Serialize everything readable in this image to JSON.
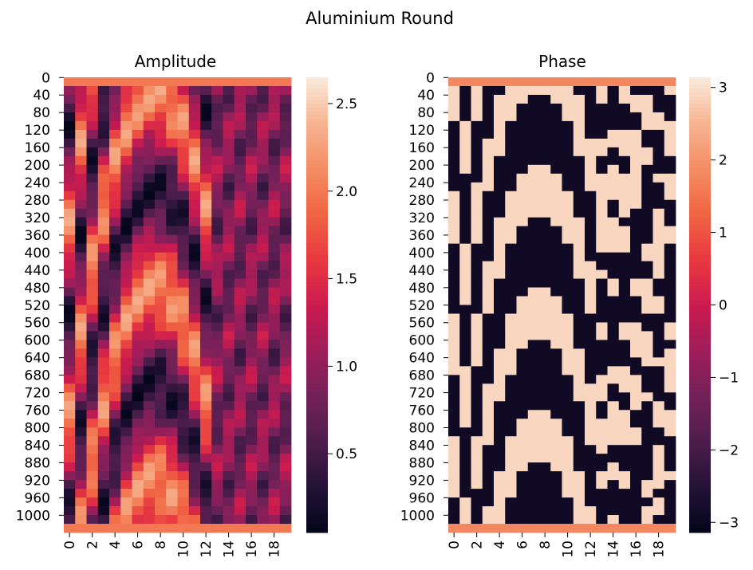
{
  "suptitle": "Aluminium Round",
  "chart_data": [
    {
      "type": "heatmap",
      "title": "Amplitude",
      "x_ticks": [
        "0",
        "2",
        "4",
        "6",
        "8",
        "10",
        "12",
        "14",
        "16",
        "18"
      ],
      "y_ticks": [
        "0",
        "40",
        "80",
        "120",
        "160",
        "200",
        "240",
        "280",
        "320",
        "360",
        "400",
        "440",
        "480",
        "520",
        "560",
        "600",
        "640",
        "680",
        "720",
        "760",
        "800",
        "840",
        "880",
        "920",
        "960",
        "1000"
      ],
      "n_cols": 20,
      "n_rows": 1040,
      "colorbar": {
        "min": 0.05,
        "max": 2.65,
        "ticks": [
          "0.5",
          "1.0",
          "1.5",
          "2.0",
          "2.5"
        ],
        "tick_values": [
          0.5,
          1.0,
          1.5,
          2.0,
          2.5
        ]
      }
    },
    {
      "type": "heatmap",
      "title": "Phase",
      "x_ticks": [
        "0",
        "2",
        "4",
        "6",
        "8",
        "10",
        "12",
        "14",
        "16",
        "18"
      ],
      "y_ticks": [
        "0",
        "40",
        "80",
        "120",
        "160",
        "200",
        "240",
        "280",
        "320",
        "360",
        "400",
        "440",
        "480",
        "520",
        "560",
        "600",
        "640",
        "680",
        "720",
        "760",
        "800",
        "840",
        "880",
        "920",
        "960",
        "1000"
      ],
      "n_cols": 20,
      "n_rows": 1040,
      "colorbar": {
        "min": -3.14,
        "max": 3.14,
        "ticks": [
          "3",
          "2",
          "1",
          "0",
          "−1",
          "−2",
          "−3"
        ],
        "tick_values": [
          3,
          2,
          1,
          0,
          -1,
          -2,
          -3
        ]
      }
    }
  ]
}
